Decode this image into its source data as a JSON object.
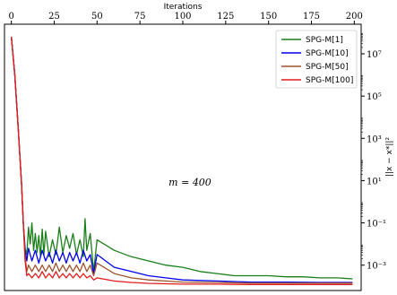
{
  "chart_data": {
    "type": "line",
    "xlabel": "Iterations",
    "ylabel": "||x − x*||²",
    "xlim": [
      -4,
      204
    ],
    "ylim_log10": [
      -4.2,
      8.4
    ],
    "yscale": "log",
    "x_axis_position": "top",
    "y_axis_position": "right",
    "x_ticks": [
      0,
      25,
      50,
      75,
      100,
      125,
      150,
      175,
      200
    ],
    "y_ticks": [
      {
        "exp": -3,
        "label": "10⁻³"
      },
      {
        "exp": -1,
        "label": "10⁻¹"
      },
      {
        "exp": 1,
        "label": "10¹"
      },
      {
        "exp": 3,
        "label": "10³"
      },
      {
        "exp": 5,
        "label": "10⁵"
      },
      {
        "exp": 7,
        "label": "10⁷"
      }
    ],
    "annotation": "m = 400",
    "legend_position": "top-right",
    "grid": false,
    "series": [
      {
        "name": "SPG-M[1]",
        "color": "#1a7f1a",
        "points": [
          [
            0,
            7.8
          ],
          [
            2,
            6.0
          ],
          [
            4,
            3.5
          ],
          [
            6,
            0.8
          ],
          [
            7,
            -1.0
          ],
          [
            8,
            -2.2
          ],
          [
            9,
            -2.5
          ],
          [
            10,
            -1.2
          ],
          [
            11,
            -2.0
          ],
          [
            12,
            -1.0
          ],
          [
            13,
            -2.3
          ],
          [
            14,
            -1.5
          ],
          [
            15,
            -2.4
          ],
          [
            16,
            -1.6
          ],
          [
            17,
            -2.6
          ],
          [
            18,
            -1.3
          ],
          [
            19,
            -2.5
          ],
          [
            20,
            -1.4
          ],
          [
            22,
            -2.6
          ],
          [
            24,
            -1.8
          ],
          [
            26,
            -2.5
          ],
          [
            28,
            -1.2
          ],
          [
            30,
            -2.4
          ],
          [
            32,
            -1.6
          ],
          [
            34,
            -2.2
          ],
          [
            36,
            -1.5
          ],
          [
            38,
            -2.5
          ],
          [
            40,
            -1.8
          ],
          [
            42,
            -2.6
          ],
          [
            43,
            -0.8
          ],
          [
            44,
            -2.3
          ],
          [
            46,
            -1.5
          ],
          [
            48,
            -3.3
          ],
          [
            50,
            -1.8
          ],
          [
            60,
            -2.3
          ],
          [
            70,
            -2.6
          ],
          [
            80,
            -2.8
          ],
          [
            90,
            -3.0
          ],
          [
            100,
            -3.1
          ],
          [
            110,
            -3.3
          ],
          [
            120,
            -3.4
          ],
          [
            130,
            -3.5
          ],
          [
            140,
            -3.5
          ],
          [
            150,
            -3.5
          ],
          [
            160,
            -3.55
          ],
          [
            170,
            -3.55
          ],
          [
            180,
            -3.6
          ],
          [
            190,
            -3.6
          ],
          [
            199,
            -3.65
          ]
        ]
      },
      {
        "name": "SPG-M[10]",
        "color": "#0000ee",
        "points": [
          [
            0,
            7.8
          ],
          [
            2,
            6.0
          ],
          [
            4,
            3.5
          ],
          [
            6,
            0.8
          ],
          [
            7,
            -1.0
          ],
          [
            8,
            -2.3
          ],
          [
            9,
            -2.8
          ],
          [
            10,
            -2.2
          ],
          [
            12,
            -2.8
          ],
          [
            14,
            -2.3
          ],
          [
            16,
            -2.9
          ],
          [
            18,
            -2.3
          ],
          [
            20,
            -2.8
          ],
          [
            22,
            -2.4
          ],
          [
            24,
            -2.9
          ],
          [
            26,
            -2.3
          ],
          [
            28,
            -2.8
          ],
          [
            30,
            -2.4
          ],
          [
            32,
            -2.9
          ],
          [
            34,
            -2.4
          ],
          [
            36,
            -2.8
          ],
          [
            38,
            -2.4
          ],
          [
            40,
            -2.9
          ],
          [
            42,
            -2.3
          ],
          [
            44,
            -2.8
          ],
          [
            46,
            -2.5
          ],
          [
            48,
            -3.4
          ],
          [
            50,
            -2.5
          ],
          [
            60,
            -3.1
          ],
          [
            70,
            -3.3
          ],
          [
            80,
            -3.5
          ],
          [
            90,
            -3.6
          ],
          [
            100,
            -3.7
          ],
          [
            120,
            -3.75
          ],
          [
            140,
            -3.8
          ],
          [
            160,
            -3.8
          ],
          [
            180,
            -3.82
          ],
          [
            199,
            -3.82
          ]
        ]
      },
      {
        "name": "SPG-M[50]",
        "color": "#a0522d",
        "points": [
          [
            0,
            7.8
          ],
          [
            2,
            6.0
          ],
          [
            4,
            3.5
          ],
          [
            6,
            0.8
          ],
          [
            7,
            -1.0
          ],
          [
            8,
            -2.6
          ],
          [
            9,
            -3.3
          ],
          [
            10,
            -3.0
          ],
          [
            12,
            -3.3
          ],
          [
            14,
            -3.0
          ],
          [
            16,
            -3.3
          ],
          [
            18,
            -3.0
          ],
          [
            20,
            -3.3
          ],
          [
            22,
            -3.0
          ],
          [
            24,
            -3.3
          ],
          [
            26,
            -2.9
          ],
          [
            28,
            -3.3
          ],
          [
            30,
            -3.0
          ],
          [
            32,
            -3.3
          ],
          [
            34,
            -3.0
          ],
          [
            36,
            -3.3
          ],
          [
            38,
            -3.0
          ],
          [
            40,
            -3.3
          ],
          [
            42,
            -2.9
          ],
          [
            44,
            -3.3
          ],
          [
            46,
            -3.0
          ],
          [
            48,
            -3.5
          ],
          [
            50,
            -2.9
          ],
          [
            60,
            -3.4
          ],
          [
            70,
            -3.6
          ],
          [
            80,
            -3.7
          ],
          [
            90,
            -3.75
          ],
          [
            100,
            -3.8
          ],
          [
            120,
            -3.82
          ],
          [
            140,
            -3.85
          ],
          [
            160,
            -3.85
          ],
          [
            180,
            -3.85
          ],
          [
            199,
            -3.85
          ]
        ]
      },
      {
        "name": "SPG-M[100]",
        "color": "#e31a1c",
        "points": [
          [
            0,
            7.8
          ],
          [
            2,
            6.0
          ],
          [
            4,
            3.5
          ],
          [
            6,
            0.8
          ],
          [
            7,
            -1.0
          ],
          [
            8,
            -2.8
          ],
          [
            9,
            -3.5
          ],
          [
            10,
            -3.4
          ],
          [
            12,
            -3.6
          ],
          [
            14,
            -3.4
          ],
          [
            16,
            -3.6
          ],
          [
            18,
            -3.3
          ],
          [
            20,
            -3.6
          ],
          [
            22,
            -3.4
          ],
          [
            24,
            -3.6
          ],
          [
            26,
            -3.3
          ],
          [
            28,
            -3.6
          ],
          [
            30,
            -3.4
          ],
          [
            32,
            -3.6
          ],
          [
            34,
            -3.4
          ],
          [
            36,
            -3.6
          ],
          [
            38,
            -3.4
          ],
          [
            40,
            -3.6
          ],
          [
            42,
            -3.4
          ],
          [
            44,
            -3.6
          ],
          [
            46,
            -3.5
          ],
          [
            48,
            -3.7
          ],
          [
            50,
            -3.6
          ],
          [
            60,
            -3.75
          ],
          [
            70,
            -3.82
          ],
          [
            80,
            -3.86
          ],
          [
            90,
            -3.88
          ],
          [
            100,
            -3.9
          ],
          [
            120,
            -3.9
          ],
          [
            140,
            -3.92
          ],
          [
            160,
            -3.92
          ],
          [
            180,
            -3.92
          ],
          [
            199,
            -3.92
          ]
        ]
      }
    ]
  }
}
